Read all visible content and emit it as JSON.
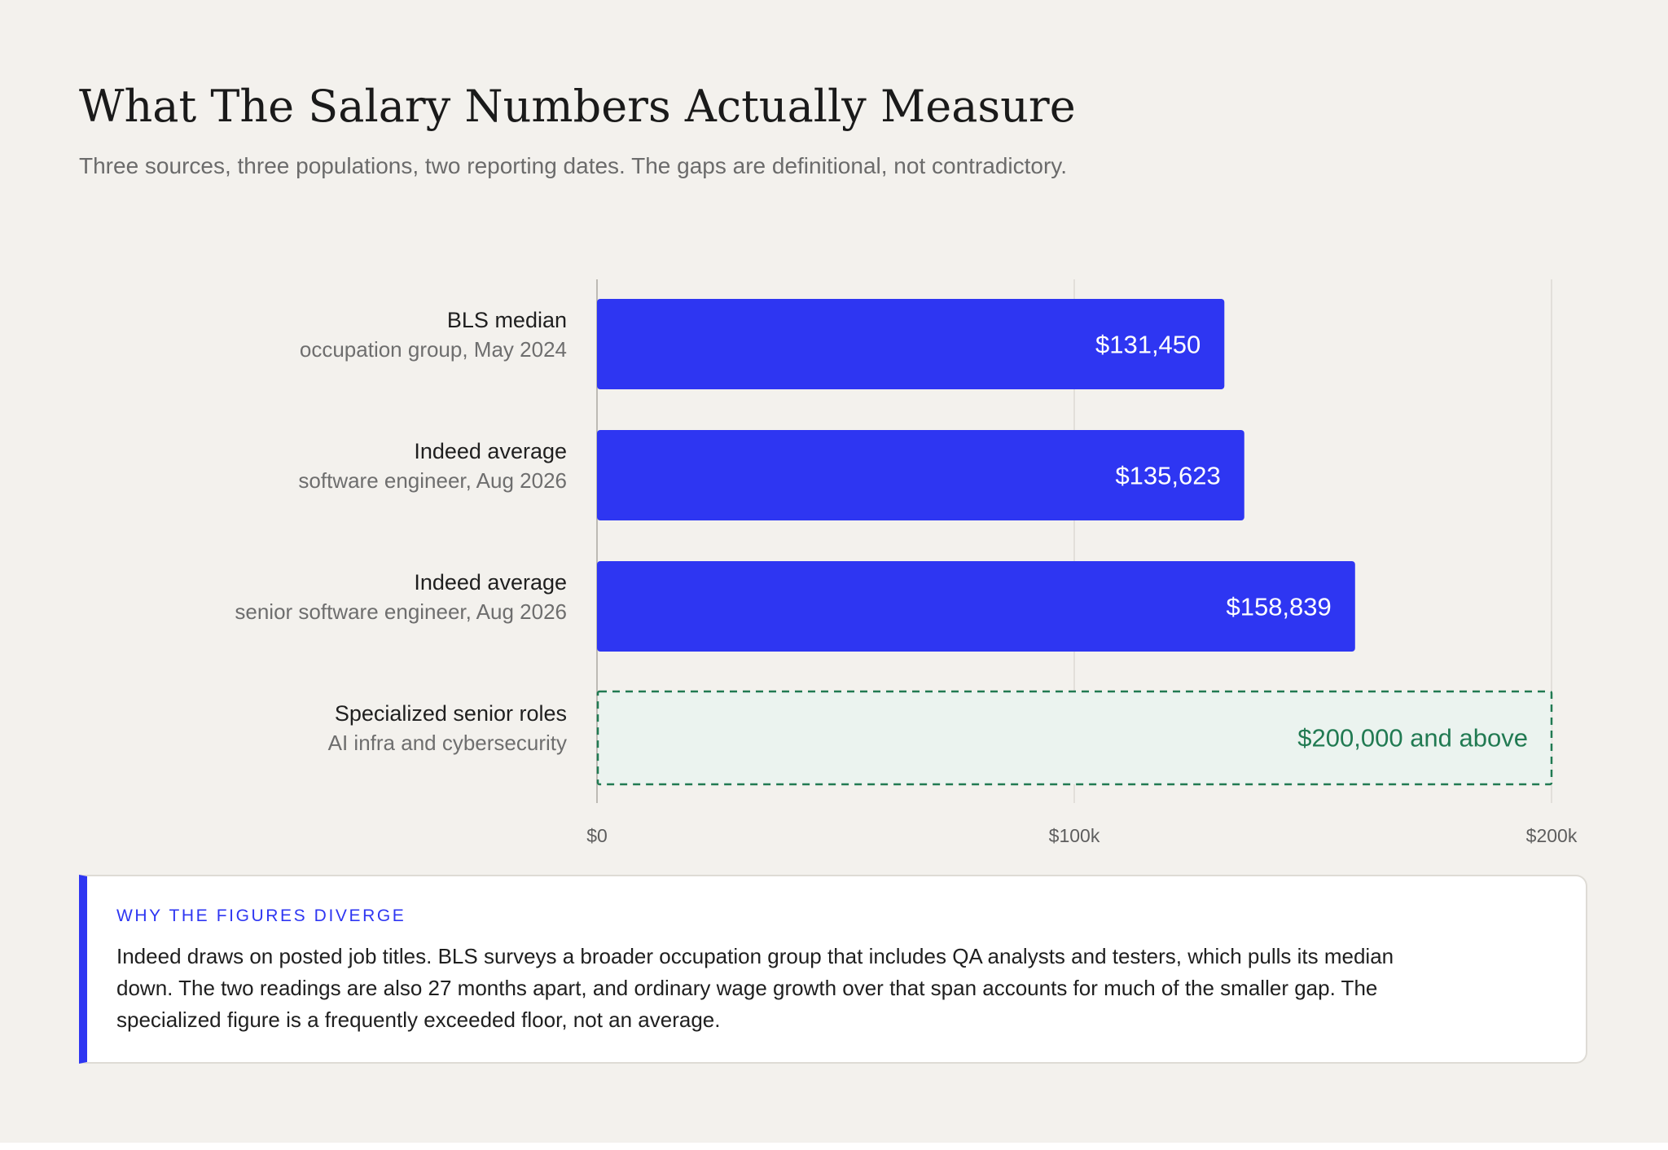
{
  "header": {
    "title": "What The Salary Numbers Actually Measure",
    "subtitle": "Three sources, three populations, two reporting dates. The gaps are definitional, not contradictory."
  },
  "chart_data": {
    "type": "bar",
    "orientation": "horizontal",
    "title": "What The Salary Numbers Actually Measure",
    "subtitle": "Three sources, three populations, two reporting dates. The gaps are definitional, not contradictory.",
    "xlim": [
      0,
      200000
    ],
    "grid": true,
    "x_ticks": [
      {
        "value": 0,
        "label": "$0"
      },
      {
        "value": 100000,
        "label": "$100k"
      },
      {
        "value": 200000,
        "label": "$200k"
      }
    ],
    "bars": [
      {
        "label": "BLS median",
        "sublabel": "occupation group, May 2024",
        "value": 131450,
        "value_label": "$131,450",
        "style": "solid"
      },
      {
        "label": "Indeed average",
        "sublabel": "software engineer, Aug 2026",
        "value": 135623,
        "value_label": "$135,623",
        "style": "solid"
      },
      {
        "label": "Indeed average",
        "sublabel": "senior software engineer, Aug 2026",
        "value": 158839,
        "value_label": "$158,839",
        "style": "solid"
      },
      {
        "label": "Specialized senior roles",
        "sublabel": "AI infra and cybersecurity",
        "value": 200000,
        "value_label": "$200,000 and above",
        "style": "dashed-floor"
      }
    ],
    "colors": {
      "bar": "#2e36f2",
      "floor_fill": "#ebf3ef",
      "floor_stroke": "#217a52",
      "floor_text": "#217a52"
    }
  },
  "note": {
    "heading": "WHY THE FIGURES DIVERGE",
    "body": "Indeed draws on posted job titles. BLS surveys a broader occupation group that includes QA analysts and testers, which pulls its median down. The two readings are also 27 months apart, and ordinary wage growth over that span accounts for much of the smaller gap. The specialized figure is a frequently exceeded floor, not an average."
  }
}
